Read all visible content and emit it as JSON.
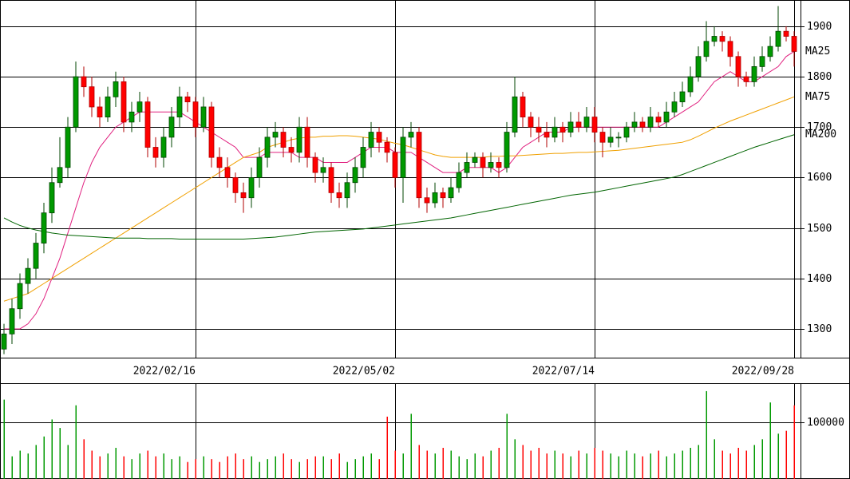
{
  "chart_data": [
    {
      "type": "candlestick",
      "categories": [
        null,
        null,
        null,
        null,
        null,
        null,
        null,
        null,
        null,
        null,
        null,
        null,
        null,
        null,
        null,
        null,
        null,
        null,
        null,
        null,
        null,
        null,
        null,
        null,
        "2022/02/16",
        null,
        null,
        null,
        null,
        null,
        null,
        null,
        null,
        null,
        null,
        null,
        null,
        null,
        null,
        null,
        null,
        null,
        null,
        null,
        null,
        null,
        null,
        null,
        null,
        "2022/05/02",
        null,
        null,
        null,
        null,
        null,
        null,
        null,
        null,
        null,
        null,
        null,
        null,
        null,
        null,
        null,
        null,
        null,
        null,
        null,
        null,
        null,
        null,
        null,
        null,
        "2022/07/14",
        null,
        null,
        null,
        null,
        null,
        null,
        null,
        null,
        null,
        null,
        null,
        null,
        null,
        null,
        null,
        null,
        null,
        null,
        null,
        null,
        null,
        null,
        null,
        null,
        "2022/09/28"
      ],
      "open": [
        1260,
        1290,
        1340,
        1390,
        1420,
        1470,
        1530,
        1590,
        1620,
        1700,
        1800,
        1780,
        1740,
        1720,
        1760,
        1790,
        1710,
        1730,
        1750,
        1660,
        1640,
        1680,
        1720,
        1760,
        1750,
        1700,
        1740,
        1640,
        1620,
        1600,
        1570,
        1560,
        1600,
        1640,
        1680,
        1690,
        1660,
        1650,
        1700,
        1640,
        1610,
        1620,
        1570,
        1560,
        1590,
        1620,
        1660,
        1690,
        1670,
        1650,
        1600,
        1680,
        1690,
        1560,
        1550,
        1570,
        1560,
        1580,
        1610,
        1630,
        1640,
        1620,
        1630,
        1620,
        1690,
        1760,
        1720,
        1700,
        1690,
        1680,
        1700,
        1690,
        1710,
        1700,
        1720,
        1690,
        1670,
        1680,
        1680,
        1700,
        1710,
        1700,
        1720,
        1710,
        1730,
        1750,
        1770,
        1800,
        1840,
        1870,
        1880,
        1870,
        1840,
        1800,
        1790,
        1820,
        1840,
        1860,
        1890,
        1880
      ],
      "high": [
        1310,
        1360,
        1410,
        1440,
        1490,
        1550,
        1620,
        1680,
        1720,
        1830,
        1820,
        1800,
        1760,
        1780,
        1810,
        1800,
        1750,
        1770,
        1760,
        1680,
        1700,
        1740,
        1780,
        1770,
        1760,
        1760,
        1750,
        1660,
        1640,
        1610,
        1590,
        1620,
        1660,
        1700,
        1710,
        1700,
        1680,
        1720,
        1720,
        1650,
        1640,
        1630,
        1590,
        1610,
        1640,
        1680,
        1710,
        1700,
        1680,
        1660,
        1700,
        1710,
        1700,
        1580,
        1590,
        1580,
        1600,
        1630,
        1650,
        1650,
        1650,
        1650,
        1640,
        1710,
        1800,
        1770,
        1730,
        1720,
        1710,
        1720,
        1710,
        1730,
        1730,
        1740,
        1740,
        1700,
        1700,
        1690,
        1710,
        1730,
        1720,
        1740,
        1730,
        1750,
        1770,
        1790,
        1820,
        1860,
        1910,
        1900,
        1890,
        1880,
        1850,
        1810,
        1840,
        1860,
        1880,
        1940,
        1900,
        1890
      ],
      "low": [
        1250,
        1270,
        1320,
        1370,
        1400,
        1450,
        1510,
        1580,
        1600,
        1690,
        1760,
        1720,
        1700,
        1710,
        1740,
        1690,
        1690,
        1710,
        1640,
        1620,
        1620,
        1660,
        1700,
        1730,
        1680,
        1690,
        1620,
        1600,
        1580,
        1550,
        1530,
        1540,
        1580,
        1620,
        1660,
        1640,
        1630,
        1630,
        1620,
        1590,
        1590,
        1550,
        1540,
        1540,
        1570,
        1600,
        1640,
        1650,
        1630,
        1580,
        1550,
        1660,
        1540,
        1530,
        1540,
        1540,
        1550,
        1570,
        1600,
        1620,
        1600,
        1610,
        1600,
        1610,
        1680,
        1700,
        1680,
        1670,
        1660,
        1670,
        1670,
        1680,
        1690,
        1690,
        1670,
        1640,
        1660,
        1660,
        1670,
        1690,
        1690,
        1690,
        1700,
        1700,
        1720,
        1740,
        1760,
        1790,
        1830,
        1860,
        1850,
        1820,
        1780,
        1780,
        1780,
        1810,
        1830,
        1850,
        1870,
        1820
      ],
      "close": [
        1290,
        1340,
        1390,
        1420,
        1470,
        1530,
        1590,
        1620,
        1700,
        1800,
        1780,
        1740,
        1720,
        1760,
        1790,
        1710,
        1730,
        1750,
        1660,
        1640,
        1680,
        1720,
        1760,
        1750,
        1700,
        1740,
        1640,
        1620,
        1600,
        1570,
        1560,
        1600,
        1640,
        1680,
        1690,
        1660,
        1650,
        1700,
        1640,
        1610,
        1620,
        1570,
        1560,
        1590,
        1620,
        1660,
        1690,
        1670,
        1650,
        1600,
        1680,
        1690,
        1560,
        1550,
        1570,
        1560,
        1580,
        1610,
        1630,
        1640,
        1620,
        1630,
        1620,
        1690,
        1760,
        1720,
        1700,
        1690,
        1680,
        1700,
        1690,
        1710,
        1700,
        1720,
        1690,
        1670,
        1680,
        1680,
        1700,
        1710,
        1700,
        1720,
        1710,
        1730,
        1750,
        1770,
        1800,
        1840,
        1870,
        1880,
        1870,
        1840,
        1800,
        1790,
        1820,
        1840,
        1860,
        1890,
        1880,
        1850
      ],
      "up_color": "#009900",
      "down_color": "#ff0000",
      "series": [
        {
          "name": "MA25",
          "color": "#e0207f",
          "values": [
            1300,
            1300,
            1300,
            1310,
            1330,
            1360,
            1400,
            1440,
            1490,
            1540,
            1590,
            1630,
            1660,
            1680,
            1700,
            1710,
            1720,
            1730,
            1730,
            1730,
            1730,
            1730,
            1730,
            1720,
            1710,
            1700,
            1690,
            1680,
            1670,
            1660,
            1640,
            1640,
            1640,
            1650,
            1650,
            1650,
            1650,
            1640,
            1640,
            1640,
            1630,
            1630,
            1630,
            1630,
            1640,
            1650,
            1660,
            1660,
            1660,
            1650,
            1650,
            1650,
            1640,
            1630,
            1620,
            1610,
            1610,
            1610,
            1620,
            1620,
            1620,
            1620,
            1610,
            1620,
            1640,
            1660,
            1670,
            1680,
            1690,
            1690,
            1690,
            1700,
            1700,
            1700,
            1700,
            1700,
            1700,
            1700,
            1700,
            1700,
            1700,
            1700,
            1700,
            1710,
            1720,
            1730,
            1740,
            1750,
            1770,
            1790,
            1800,
            1810,
            1800,
            1790,
            1790,
            1800,
            1810,
            1820,
            1840,
            1850
          ]
        },
        {
          "name": "MA75",
          "color": "#f0a000",
          "values": [
            1355,
            1360,
            1365,
            1370,
            1380,
            1390,
            1400,
            1410,
            1420,
            1430,
            1440,
            1450,
            1460,
            1470,
            1480,
            1490,
            1500,
            1510,
            1520,
            1530,
            1540,
            1550,
            1560,
            1570,
            1580,
            1590,
            1600,
            1610,
            1620,
            1630,
            1640,
            1645,
            1650,
            1660,
            1665,
            1670,
            1675,
            1678,
            1680,
            1680,
            1682,
            1682,
            1683,
            1683,
            1682,
            1680,
            1678,
            1676,
            1672,
            1668,
            1665,
            1660,
            1655,
            1650,
            1645,
            1642,
            1640,
            1640,
            1640,
            1640,
            1640,
            1642,
            1642,
            1643,
            1643,
            1644,
            1645,
            1646,
            1647,
            1648,
            1648,
            1649,
            1650,
            1650,
            1651,
            1652,
            1653,
            1654,
            1656,
            1658,
            1660,
            1662,
            1664,
            1666,
            1668,
            1670,
            1675,
            1682,
            1690,
            1698,
            1705,
            1712,
            1718,
            1724,
            1730,
            1736,
            1742,
            1748,
            1754,
            1760
          ]
        },
        {
          "name": "MA200",
          "color": "#006400",
          "values": [
            1520,
            1512,
            1505,
            1500,
            1496,
            1493,
            1490,
            1488,
            1486,
            1485,
            1484,
            1483,
            1482,
            1481,
            1480,
            1480,
            1480,
            1480,
            1479,
            1479,
            1479,
            1479,
            1478,
            1478,
            1478,
            1478,
            1478,
            1478,
            1478,
            1478,
            1478,
            1479,
            1480,
            1481,
            1482,
            1484,
            1486,
            1488,
            1490,
            1492,
            1493,
            1494,
            1495,
            1496,
            1497,
            1498,
            1500,
            1502,
            1504,
            1506,
            1508,
            1510,
            1512,
            1514,
            1516,
            1518,
            1520,
            1523,
            1526,
            1529,
            1532,
            1535,
            1538,
            1541,
            1544,
            1547,
            1550,
            1553,
            1556,
            1559,
            1562,
            1565,
            1567,
            1569,
            1571,
            1574,
            1577,
            1580,
            1583,
            1586,
            1589,
            1592,
            1595,
            1598,
            1601,
            1606,
            1612,
            1618,
            1624,
            1630,
            1636,
            1642,
            1648,
            1654,
            1660,
            1665,
            1670,
            1675,
            1680,
            1685
          ]
        }
      ],
      "ylim": [
        1243,
        1952
      ],
      "yticks": [
        1300,
        1400,
        1500,
        1600,
        1700,
        1800,
        1900
      ],
      "grid": true
    },
    {
      "type": "bar",
      "values": [
        140000,
        40000,
        50000,
        45000,
        60000,
        75000,
        105000,
        90000,
        60000,
        130000,
        70000,
        50000,
        40000,
        45000,
        55000,
        40000,
        35000,
        45000,
        50000,
        40000,
        45000,
        35000,
        40000,
        30000,
        35000,
        40000,
        35000,
        30000,
        40000,
        45000,
        35000,
        40000,
        30000,
        35000,
        40000,
        45000,
        35000,
        30000,
        35000,
        40000,
        40000,
        35000,
        45000,
        30000,
        35000,
        40000,
        45000,
        35000,
        110000,
        50000,
        45000,
        115000,
        60000,
        50000,
        45000,
        55000,
        50000,
        40000,
        35000,
        45000,
        40000,
        50000,
        55000,
        115000,
        70000,
        60000,
        50000,
        55000,
        45000,
        50000,
        45000,
        40000,
        50000,
        45000,
        55000,
        50000,
        45000,
        40000,
        50000,
        45000,
        40000,
        45000,
        50000,
        40000,
        45000,
        50000,
        55000,
        60000,
        155000,
        70000,
        50000,
        45000,
        55000,
        50000,
        60000,
        70000,
        135000,
        80000,
        85000,
        130000
      ],
      "ylim": [
        0,
        169000
      ],
      "yticks": [
        100000
      ],
      "grid": true
    }
  ]
}
